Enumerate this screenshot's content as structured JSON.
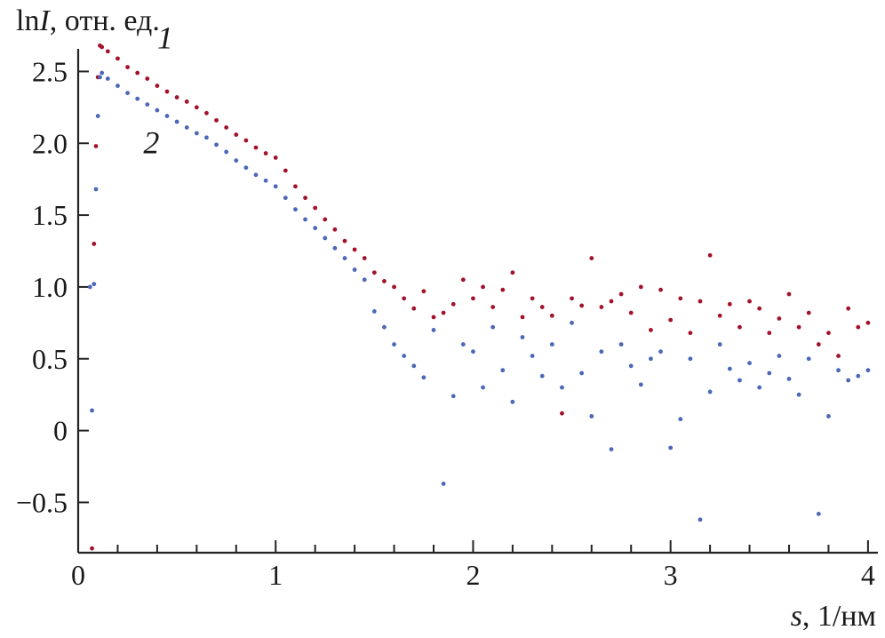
{
  "chart_data": {
    "type": "scatter",
    "title": "",
    "ylabel": {
      "pre": "ln",
      "italic": "I",
      "post": ", отн. ед."
    },
    "xlabel": {
      "italic": "s",
      "post": ", 1/нм"
    },
    "xlim": [
      0,
      4.05
    ],
    "ylim": [
      -0.85,
      2.75
    ],
    "xticks": [
      "0",
      "1",
      "2",
      "3",
      "4"
    ],
    "xtick_values": [
      0,
      1,
      2,
      3,
      4
    ],
    "xminor_step": 0.2,
    "yticks": [
      "−0.5",
      "0",
      "0.5",
      "1.0",
      "1.5",
      "2.0",
      "2.5"
    ],
    "ytick_values": [
      -0.5,
      0,
      0.5,
      1.0,
      1.5,
      2.0,
      2.5
    ],
    "grid": false,
    "series": [
      {
        "label": "1",
        "color": "#a3122a",
        "x": [
          0.07,
          0.08,
          0.09,
          0.1,
          0.11,
          0.12,
          0.15,
          0.2,
          0.25,
          0.3,
          0.35,
          0.4,
          0.45,
          0.5,
          0.55,
          0.6,
          0.65,
          0.7,
          0.75,
          0.8,
          0.85,
          0.9,
          0.95,
          1.0,
          1.05,
          1.1,
          1.15,
          1.2,
          1.25,
          1.3,
          1.35,
          1.4,
          1.45,
          1.5,
          1.55,
          1.6,
          1.65,
          1.7,
          1.75,
          1.8,
          1.85,
          1.9,
          1.95,
          2.0,
          2.05,
          2.1,
          2.15,
          2.2,
          2.25,
          2.3,
          2.35,
          2.4,
          2.45,
          2.5,
          2.55,
          2.6,
          2.65,
          2.7,
          2.75,
          2.8,
          2.85,
          2.9,
          2.95,
          3.0,
          3.05,
          3.1,
          3.15,
          3.2,
          3.25,
          3.3,
          3.35,
          3.4,
          3.45,
          3.5,
          3.55,
          3.6,
          3.65,
          3.7,
          3.75,
          3.8,
          3.85,
          3.9,
          3.95,
          4.0
        ],
        "y": [
          -0.82,
          1.3,
          1.98,
          2.46,
          2.68,
          2.67,
          2.64,
          2.59,
          2.53,
          2.49,
          2.45,
          2.4,
          2.36,
          2.32,
          2.29,
          2.25,
          2.21,
          2.16,
          2.11,
          2.06,
          2.02,
          1.97,
          1.93,
          1.9,
          1.81,
          1.7,
          1.62,
          1.55,
          1.47,
          1.4,
          1.32,
          1.26,
          1.2,
          1.1,
          1.04,
          1.0,
          0.92,
          0.85,
          0.97,
          0.79,
          0.82,
          0.88,
          1.05,
          0.92,
          1.0,
          0.86,
          0.98,
          1.1,
          0.79,
          0.92,
          0.86,
          0.8,
          0.12,
          0.92,
          0.87,
          1.2,
          0.86,
          0.9,
          0.95,
          0.82,
          1.0,
          0.7,
          0.98,
          0.77,
          0.92,
          0.68,
          0.9,
          1.22,
          0.8,
          0.88,
          0.72,
          0.9,
          0.85,
          0.68,
          0.78,
          0.95,
          0.72,
          0.82,
          0.6,
          0.68,
          0.52,
          0.85,
          0.72,
          0.75
        ]
      },
      {
        "label": "2",
        "color": "#4a67b8",
        "x": [
          0.06,
          0.07,
          0.08,
          0.09,
          0.1,
          0.11,
          0.12,
          0.15,
          0.2,
          0.25,
          0.3,
          0.35,
          0.4,
          0.45,
          0.5,
          0.55,
          0.6,
          0.65,
          0.7,
          0.75,
          0.8,
          0.85,
          0.9,
          0.95,
          1.0,
          1.05,
          1.1,
          1.15,
          1.2,
          1.25,
          1.3,
          1.35,
          1.4,
          1.45,
          1.5,
          1.55,
          1.6,
          1.65,
          1.7,
          1.75,
          1.8,
          1.85,
          1.9,
          1.95,
          2.0,
          2.05,
          2.1,
          2.15,
          2.2,
          2.25,
          2.3,
          2.35,
          2.4,
          2.45,
          2.5,
          2.55,
          2.6,
          2.65,
          2.7,
          2.75,
          2.8,
          2.85,
          2.9,
          2.95,
          3.0,
          3.05,
          3.1,
          3.15,
          3.2,
          3.25,
          3.3,
          3.35,
          3.4,
          3.45,
          3.5,
          3.55,
          3.6,
          3.65,
          3.7,
          3.75,
          3.8,
          3.85,
          3.9,
          3.95,
          4.0
        ],
        "y": [
          1.0,
          0.14,
          1.02,
          1.68,
          2.19,
          2.46,
          2.49,
          2.45,
          2.4,
          2.35,
          2.31,
          2.27,
          2.23,
          2.19,
          2.15,
          2.11,
          2.07,
          2.04,
          1.99,
          1.94,
          1.88,
          1.83,
          1.78,
          1.74,
          1.7,
          1.62,
          1.54,
          1.47,
          1.41,
          1.34,
          1.27,
          1.2,
          1.12,
          1.05,
          0.83,
          0.72,
          0.6,
          0.52,
          0.45,
          0.37,
          0.7,
          -0.37,
          0.24,
          0.6,
          0.55,
          0.3,
          0.72,
          0.42,
          0.2,
          0.65,
          0.52,
          0.38,
          0.6,
          0.3,
          0.75,
          0.4,
          0.1,
          0.55,
          -0.13,
          0.6,
          0.45,
          0.32,
          0.5,
          0.55,
          -0.12,
          0.08,
          0.5,
          -0.62,
          0.27,
          0.6,
          0.43,
          0.35,
          0.47,
          0.3,
          0.4,
          0.52,
          0.36,
          0.25,
          0.5,
          -0.58,
          0.1,
          0.42,
          0.35,
          0.38,
          0.42
        ]
      }
    ]
  }
}
